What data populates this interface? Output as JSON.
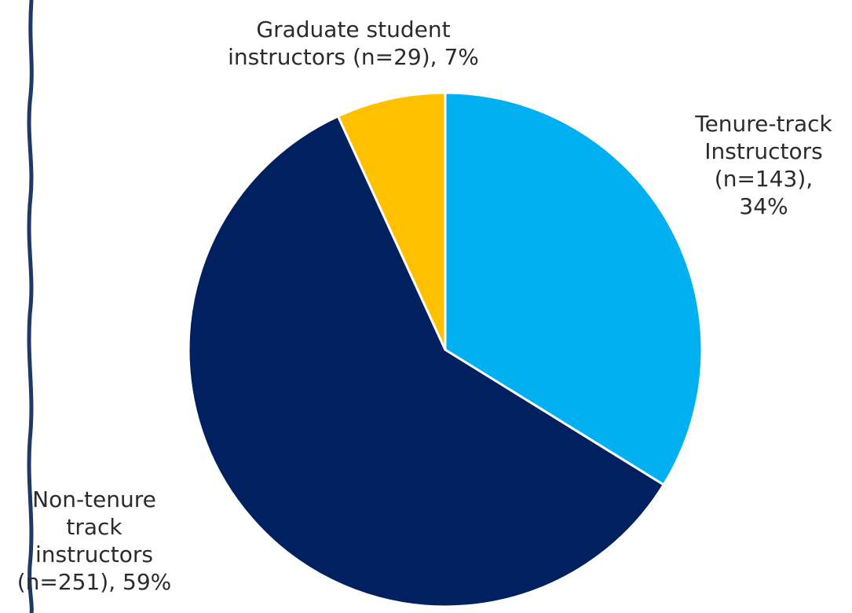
{
  "chart_data": {
    "type": "pie",
    "title": "",
    "start_angle_deg": 0,
    "direction": "clockwise",
    "slices": [
      {
        "name": "Tenure-track Instructors",
        "n": 143,
        "percent": 34,
        "color": "#00B0F0",
        "label_lines": [
          "Tenure-track",
          "Instructors",
          "(n=143),",
          "34%"
        ]
      },
      {
        "name": "Non-tenure track instructors",
        "n": 251,
        "percent": 59,
        "color": "#002060",
        "label_lines": [
          "Non-tenure",
          "track",
          "instructors",
          "(n=251), 59%"
        ]
      },
      {
        "name": "Graduate student instructors",
        "n": 29,
        "percent": 7,
        "color": "#FFC000",
        "label_lines": [
          "Graduate student",
          "instructors (n=29), 7%"
        ]
      }
    ]
  },
  "decoration": {
    "left_border_color": "#1F3864"
  }
}
